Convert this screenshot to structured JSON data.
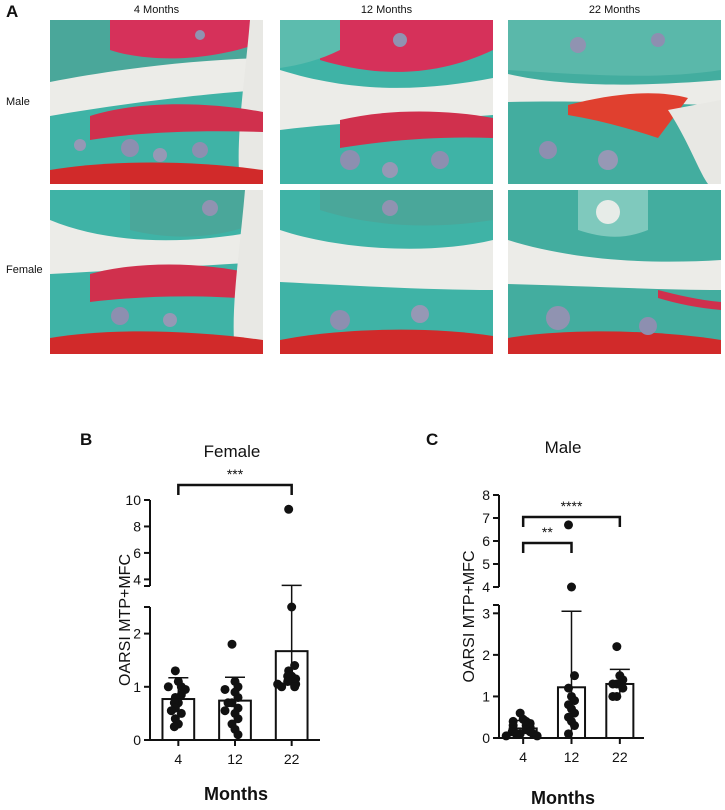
{
  "panels": {
    "a": {
      "letter": "A",
      "columns": [
        "4 Months",
        "12 Months",
        "22 Months"
      ],
      "rows": [
        "Male",
        "Female"
      ]
    }
  },
  "chart_data": [
    {
      "panel_letter": "B",
      "type": "bar",
      "title": "Female",
      "xlabel": "Months",
      "ylabel": "OARSI MTP+MFC",
      "categories": [
        "4",
        "12",
        "22"
      ],
      "broken_axis": true,
      "lower_ylim": [
        0,
        2.5
      ],
      "lower_ticks": [
        0,
        1,
        2
      ],
      "upper_ylim": [
        3.5,
        10
      ],
      "upper_ticks": [
        4,
        6,
        8,
        10
      ],
      "values": [
        0.77,
        0.74,
        1.67
      ],
      "sd_upper": [
        1.17,
        1.18,
        3.55
      ],
      "sd_lower": [
        0.42,
        0.32,
        1.12
      ],
      "points": [
        [
          1.3,
          1.1,
          1.0,
          1.0,
          0.95,
          0.85,
          0.8,
          0.7,
          0.7,
          0.6,
          0.55,
          0.5,
          0.4,
          0.3,
          0.25
        ],
        [
          1.8,
          1.1,
          1.0,
          0.95,
          0.9,
          0.8,
          0.7,
          0.7,
          0.6,
          0.55,
          0.5,
          0.4,
          0.3,
          0.2,
          0.1
        ],
        [
          9.3,
          2.5,
          1.4,
          1.3,
          1.2,
          1.2,
          1.15,
          1.1,
          1.1,
          1.05,
          1.05,
          1.0,
          1.0
        ]
      ],
      "significance": [
        {
          "from": "4",
          "to": "22",
          "label": "***"
        }
      ]
    },
    {
      "panel_letter": "C",
      "type": "bar",
      "title": "Male",
      "xlabel": "Months",
      "ylabel": "OARSI MTP+MFC",
      "categories": [
        "4",
        "12",
        "22"
      ],
      "broken_axis": true,
      "lower_ylim": [
        0,
        3.2
      ],
      "lower_ticks": [
        0,
        1,
        2,
        3
      ],
      "upper_ylim": [
        4,
        8
      ],
      "upper_ticks": [
        4,
        5,
        6,
        7,
        8
      ],
      "values": [
        0.23,
        1.22,
        1.3
      ],
      "sd_upper": [
        0.42,
        3.05,
        1.65
      ],
      "sd_lower": [
        0.04,
        0.0,
        0.95
      ],
      "points": [
        [
          0.6,
          0.45,
          0.4,
          0.4,
          0.35,
          0.3,
          0.3,
          0.25,
          0.2,
          0.2,
          0.15,
          0.15,
          0.1,
          0.1,
          0.1,
          0.05,
          0.05
        ],
        [
          6.7,
          4.0,
          1.5,
          1.2,
          1.0,
          0.9,
          0.8,
          0.7,
          0.6,
          0.5,
          0.4,
          0.3,
          0.1
        ],
        [
          2.2,
          1.5,
          1.4,
          1.3,
          1.3,
          1.2,
          1.0,
          1.0
        ]
      ],
      "significance": [
        {
          "from": "4",
          "to": "12",
          "label": "**"
        },
        {
          "from": "4",
          "to": "22",
          "label": "****"
        }
      ]
    }
  ]
}
